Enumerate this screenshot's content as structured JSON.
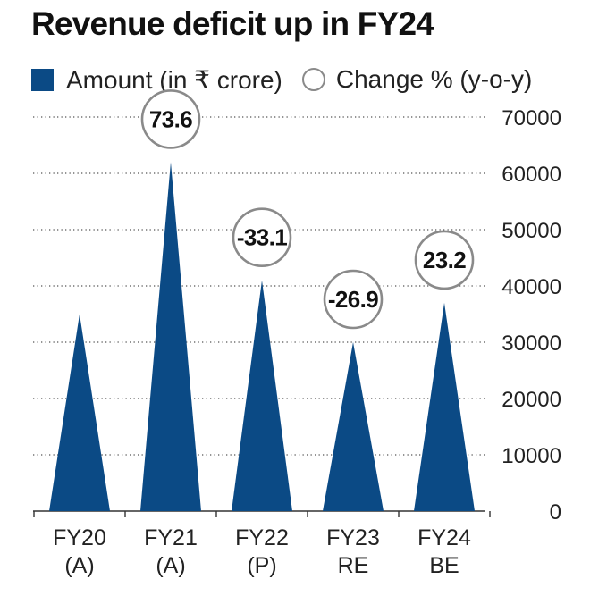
{
  "chart_data": {
    "type": "bar",
    "title": "Revenue deficit up in FY24",
    "legend": {
      "amount_label": "Amount (in ₹ crore)",
      "change_label": "Change % (y-o-y)",
      "placement": "top-left"
    },
    "categories": [
      [
        "FY20",
        "(A)"
      ],
      [
        "FY21",
        "(A)"
      ],
      [
        "FY22",
        "(P)"
      ],
      [
        "FY23",
        "RE"
      ],
      [
        "FY24",
        "BE"
      ]
    ],
    "series": [
      {
        "name": "Amount (in ₹ crore)",
        "values": [
          35000,
          62000,
          41000,
          30000,
          37000
        ]
      },
      {
        "name": "Change % (y-o-y)",
        "values": [
          null,
          73.6,
          -33.1,
          -26.9,
          23.2
        ]
      }
    ],
    "change_labels": [
      "",
      "73.6",
      "-33.1",
      "-26.9",
      "23.2"
    ],
    "yticks": [
      "0",
      "10000",
      "20000",
      "30000",
      "40000",
      "50000",
      "60000",
      "70000"
    ],
    "ylim": [
      0,
      70000
    ],
    "grid": "dotted-horizontal",
    "y_axis_side": "right",
    "mark_shape": "triangle",
    "colors": {
      "bar": "#0b4a85",
      "bubble_stroke": "#8a8a8a",
      "grid": "#555555"
    }
  }
}
